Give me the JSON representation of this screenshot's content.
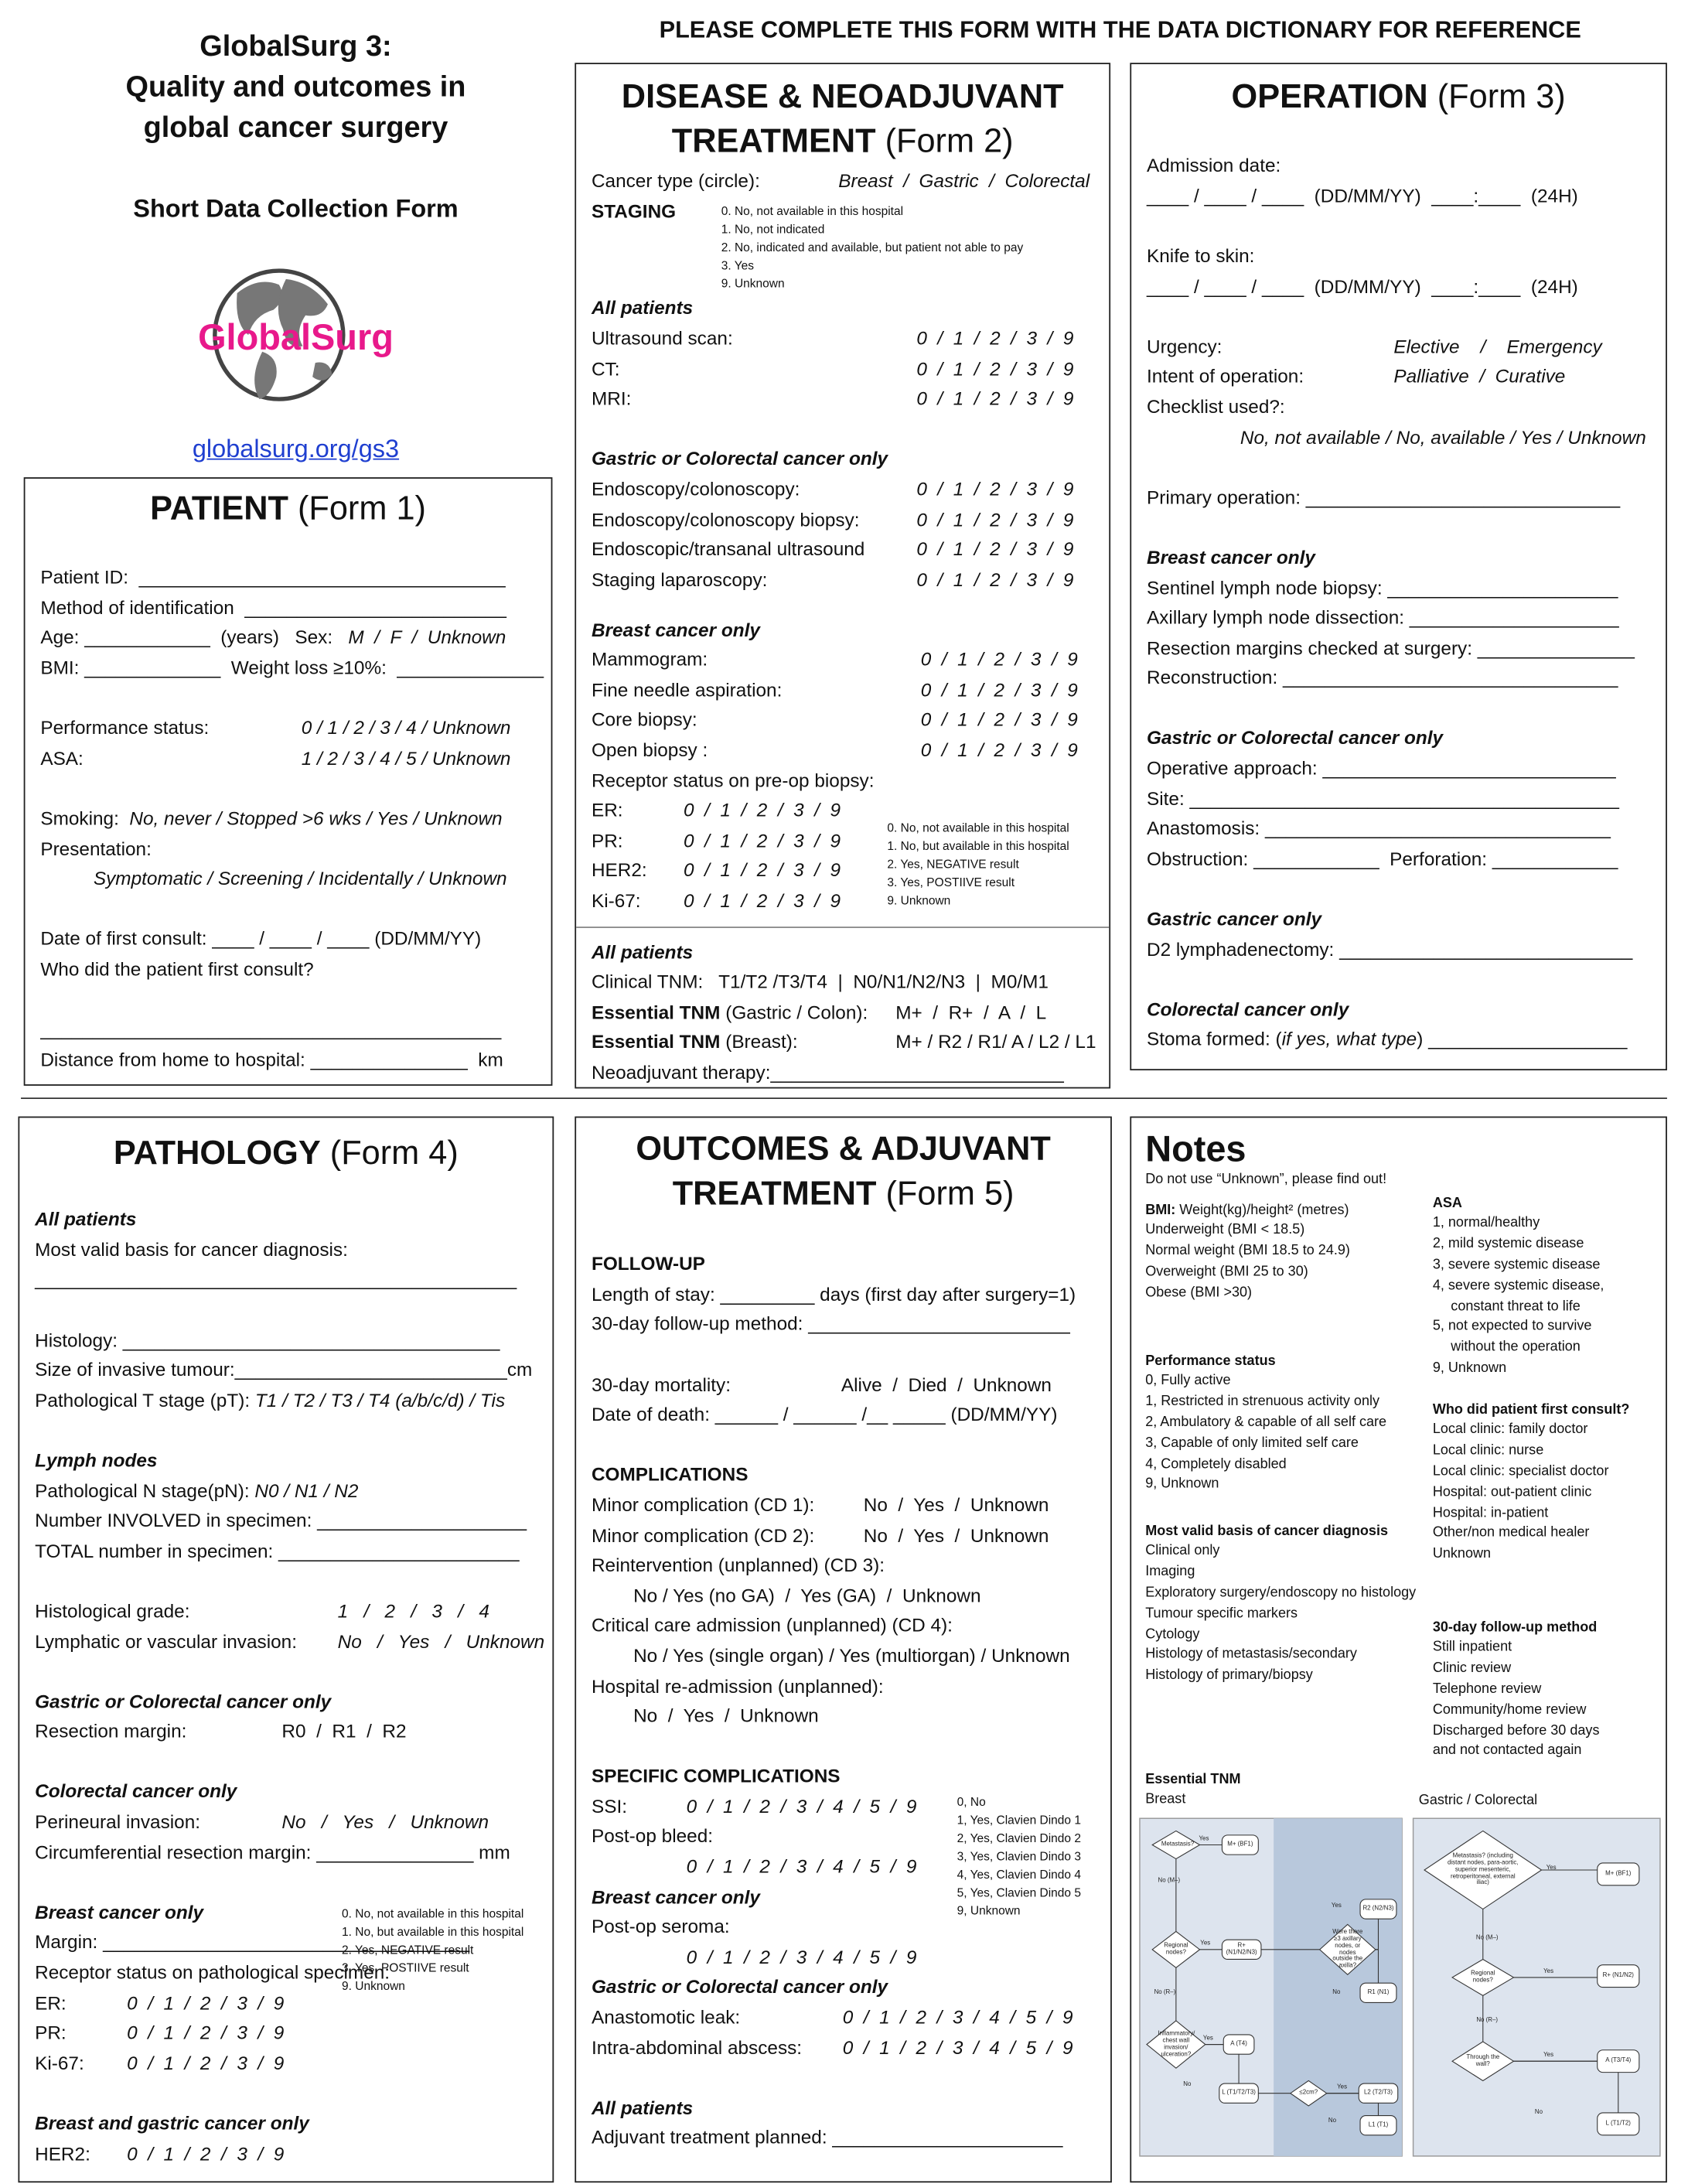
{
  "header": {
    "title": [
      "GlobalSurg 3:",
      "Quality and outcomes in",
      "global cancer surgery"
    ],
    "subtitle": "Short Data Collection Form",
    "logo_text": "GlobalSurg",
    "link": "globalsurg.org/gs3",
    "instruction": "PLEASE COMPLETE THIS FORM WITH THE DATA DICTIONARY FOR REFERENCE"
  },
  "forms": [
    {
      "title": "PATIENT",
      "form": "(Form 1)",
      "groups": [
        {
          "lines": [
            "Patient ID:  ___________________________________",
            "Method of identification  _________________________",
            [
              "Age: ____________  (years)   Sex:   ",
              "M  /  F  /  Unknown"
            ],
            "BMI: _____________  Weight loss ≥10%:  ______________"
          ]
        },
        {
          "lines": [
            {
              "label": "Performance status:",
              "options": "0 / 1 / 2 / 3 / 4 / Unknown"
            },
            {
              "label": "ASA:",
              "options": "1 / 2 / 3 / 4 / 5 / Unknown"
            }
          ]
        },
        {
          "lines": [
            [
              "Smoking:  ",
              "No, never / Stopped >6 wks / Yes / Unknown"
            ],
            "Presentation:",
            {
              "sub": "Symptomatic / Screening / Incidentally / Unknown"
            }
          ]
        },
        {
          "lines": [
            "Date of first consult: ____ / ____ / ____ (DD/MM/YY)",
            "Who did the patient first consult?"
          ]
        },
        {
          "lines": [
            "____________________________________________",
            "Distance from home to hospital: _______________  km"
          ]
        }
      ]
    },
    {
      "title": "DISEASE & NEOADJUVANT TREATMENT",
      "form": "(Form 2)",
      "groups": [
        {
          "lines": [
            {
              "label": "Cancer type (circle):",
              "options": "Breast  /  Gastric  /  Colorectal"
            }
          ]
        },
        {
          "section": "STAGING",
          "lines": [],
          "legend": [
            "0. No, not available in this hospital",
            "1. No, not indicated",
            "2. No, indicated and available, but patient not able to pay",
            "3. Yes",
            "9. Unknown"
          ]
        },
        {
          "heading": "All patients",
          "lines": [
            {
              "label": "Ultrasound scan:",
              "options": "0  /  1  /  2  /  3  /  9"
            },
            {
              "label": "CT:",
              "options": "0  /  1  /  2  /  3  /  9"
            },
            {
              "label": "MRI:",
              "options": "0  /  1  /  2  /  3  /  9"
            }
          ]
        },
        {
          "heading": "Gastric or Colorectal cancer only",
          "lines": [
            {
              "label": "Endoscopy/colonoscopy:",
              "options": "0  /  1  /  2  /  3  /  9"
            },
            {
              "label": "Endoscopy/colonoscopy biopsy:",
              "options": "0  /  1  /  2  /  3  /  9"
            },
            {
              "label": "Endoscopic/transanal ultrasound",
              "options": "0  /  1  /  2  /  3  /  9"
            },
            {
              "label": "Staging laparoscopy:",
              "options": "0  /  1  /  2  /  3  /  9"
            }
          ]
        },
        {
          "heading": "Breast cancer only",
          "lines": [
            {
              "label": "Mammogram:",
              "options": "0  /  1  /  2  /  3  /  9"
            },
            {
              "label": "Fine needle aspiration:",
              "options": "0  /  1  /  2  /  3  /  9"
            },
            {
              "label": "Core biopsy:",
              "options": "0  /  1  /  2  /  3  /  9"
            },
            {
              "label": "Open biopsy :",
              "options": "0  /  1  /  2  /  3  /  9"
            },
            "Receptor status on pre-op biopsy:"
          ]
        },
        {
          "lines": [
            {
              "label": "ER:",
              "options": "0  /  1  /  2  /  3  /  9"
            },
            {
              "label": "PR:",
              "options": "0  /  1  /  2  /  3  /  9"
            },
            {
              "label": "HER2:",
              "options": "0  /  1  /  2  /  3  /  9"
            },
            {
              "label": "Ki-67:",
              "options": "0  /  1  /  2  /  3  /  9"
            }
          ],
          "legend": [
            "0. No, not available in this hospital",
            "1. No, but available in this hospital",
            "2. Yes, NEGATIVE result",
            "3. Yes, POSTIIVE result",
            "9. Unknown"
          ]
        },
        {
          "heading": "All patients",
          "lines": [
            "Clinical TNM:   T1/T2 /T3/T4  |  N0/N1/N2/N3  |  M0/M1",
            {
              "bold": "Essential TNM",
              "label": " (Gastric / Colon):",
              "options": "M+  /  R+  /  A  /  L"
            },
            {
              "bold": "Essential TNM",
              "label": " (Breast):",
              "options": "M+ / R2 / R1/ A / L2 / L1"
            },
            "Neoadjuvant therapy:____________________________"
          ]
        }
      ]
    },
    {
      "title": "OPERATION",
      "form": "(Form 3)",
      "groups": [
        {
          "lines": [
            "Admission date:",
            "____ / ____ / ____  (DD/MM/YY)  ____:____  (24H)"
          ]
        },
        {
          "lines": [
            "Knife to skin:",
            "____ / ____ / ____  (DD/MM/YY)  ____:____  (24H)"
          ]
        },
        {
          "lines": [
            {
              "label": "Urgency:",
              "options": "Elective    /    Emergency"
            },
            {
              "label": "Intent of operation:",
              "options": "Palliative  /  Curative"
            },
            "Checklist used?:",
            {
              "sub": "No, not available / No, available / Yes / Unknown"
            }
          ]
        },
        {
          "lines": [
            "Primary operation: ______________________________"
          ]
        },
        {
          "heading": "Breast cancer only",
          "lines": [
            "Sentinel lymph node biopsy: ______________________",
            "Axillary lymph node dissection: ____________________",
            "Resection margins checked at surgery: _______________",
            "Reconstruction: ________________________________"
          ]
        },
        {
          "heading": "Gastric or Colorectal cancer only",
          "lines": [
            "Operative approach: ____________________________",
            "Site: _________________________________________",
            "Anastomosis: _________________________________",
            "Obstruction: ____________  Perforation: ____________"
          ]
        },
        {
          "heading": "Gastric cancer only",
          "lines": [
            "D2 lymphadenectomy: ____________________________"
          ]
        },
        {
          "heading": "Colorectal cancer only",
          "lines": [
            [
              "Stoma formed: (",
              "if yes, what type",
              ") ___________________"
            ]
          ]
        }
      ]
    },
    {
      "title": "PATHOLOGY",
      "form": "(Form 4)",
      "groups": [
        {
          "heading": "All patients",
          "lines": [
            "Most valid basis for cancer diagnosis:",
            "______________________________________________"
          ]
        },
        {
          "lines": [
            "Histology: ____________________________________",
            "Size of invasive tumour:__________________________cm",
            [
              "Pathological T stage (pT): ",
              "T1 / T2 / T3 / T4 (a/b/c/d) / Tis"
            ]
          ]
        },
        {
          "heading": "Lymph nodes",
          "lines": [
            [
              "Pathological N stage(pN): ",
              "N0 / N1 / N2"
            ],
            "Number INVOLVED in specimen: ____________________",
            "TOTAL number in specimen: _______________________"
          ]
        },
        {
          "lines": [
            {
              "label": "Histological grade:",
              "options": "1   /   2   /   3   /   4"
            },
            {
              "label": "Lymphatic or vascular invasion:",
              "options": "No   /   Yes   /   Unknown"
            }
          ]
        },
        {
          "heading": "Gastric or Colorectal cancer only",
          "lines": [
            {
              "label": "Resection margin:",
              "options": "R0  /  R1  /  R2"
            }
          ]
        },
        {
          "heading": "Colorectal cancer only",
          "lines": [
            {
              "label": "Perineural invasion:",
              "options": "No   /   Yes   /   Unknown"
            },
            "Circumferential resection margin: _______________ mm"
          ]
        },
        {
          "heading": "Breast cancer only",
          "lines": [
            "Margin: ___________________________________",
            "Receptor status on pathological specimen:",
            {
              "label": "ER:",
              "options": "0  /  1  /  2  /  3  /  9"
            },
            {
              "label": "PR:",
              "options": "0  /  1  /  2  /  3  /  9"
            },
            {
              "label": "Ki-67:",
              "options": "0  /  1  /  2  /  3  /  9"
            }
          ],
          "legend": [
            "0. No, not available in this hospital",
            "1. No, but available in this hospital",
            "2. Yes, NEGATIVE result",
            "3. Yes, POSTIIVE result",
            "9. Unknown"
          ]
        },
        {
          "heading": "Breast and gastric cancer only",
          "lines": [
            {
              "label": "HER2:",
              "options": "0  /  1  /  2  /  3  /  9"
            }
          ]
        }
      ]
    },
    {
      "title": "OUTCOMES & ADJUVANT TREATMENT",
      "form": "(Form 5)",
      "groups": [
        {
          "section": "FOLLOW-UP",
          "lines": [
            "Length of stay: _________ days (first day after surgery=1)",
            "30-day follow-up method: _________________________"
          ]
        },
        {
          "lines": [
            {
              "label": "30-day mortality:",
              "options": "Alive  /  Died  /  Unknown"
            },
            "Date of death: ______ / ______ /__ _____ (DD/MM/YY)"
          ]
        },
        {
          "section": "COMPLICATIONS",
          "lines": [
            {
              "label": "Minor complication (CD 1):",
              "options": "No  /  Yes  /  Unknown"
            },
            {
              "label": "Minor complication (CD 2):",
              "options": "No  /  Yes  /  Unknown"
            },
            "Reintervention (unplanned) (CD 3):",
            {
              "sub": "No / Yes (no GA)  /  Yes (GA)  /  Unknown"
            },
            "Critical care admission (unplanned) (CD 4):",
            {
              "sub": "No / Yes (single organ) / Yes (multiorgan) / Unknown"
            },
            "Hospital re-admission (unplanned):",
            {
              "sub": "No  /  Yes  /  Unknown"
            }
          ]
        },
        {
          "section": "SPECIFIC COMPLICATIONS",
          "lines": [
            {
              "label": "SSI:",
              "options": "0  /  1  /  2  /  3  /  4  /  5  /  9"
            },
            "Post-op bleed:",
            {
              "sub": "0  /  1  /  2  /  3  /  4  /  5  /  9"
            },
            {
              "heading": "Breast cancer only"
            },
            "Post-op seroma:",
            {
              "sub": "0  /  1  /  2  /  3  /  4  /  5  /  9"
            }
          ],
          "legend": [
            "0, No",
            "1, Yes, Clavien Dindo 1",
            "2, Yes, Clavien Dindo 2",
            "3, Yes, Clavien Dindo 3",
            "4, Yes, Clavien Dindo 4",
            "5, Yes, Clavien Dindo 5",
            "9, Unknown"
          ]
        },
        {
          "heading": "Gastric or Colorectal cancer only",
          "lines": [
            {
              "label": "Anastomotic leak:",
              "options": "0  /  1  /  2  /  3  /  4  /  5  /  9"
            },
            {
              "label": "Intra-abdominal abscess:",
              "options": "0  /  1  /  2  /  3  /  4  /  5  /  9"
            }
          ]
        },
        {
          "heading": "All patients",
          "lines": [
            "Adjuvant treatment planned: ______________________"
          ]
        }
      ]
    }
  ],
  "notes": {
    "title": "Notes",
    "warning": "Do not use “Unknown”, please find out!",
    "blocks": [
      {
        "items": [
          {
            "bold": "BMI:",
            "text": " Weight(kg)/height² (metres)"
          },
          "Underweight (BMI < 18.5)",
          "Normal weight (BMI 18.5 to 24.9)",
          "Overweight (BMI 25 to 30)",
          "Obese (BMI >30)"
        ]
      },
      {
        "heading": "Performance status",
        "items": [
          "0, Fully active",
          "1, Restricted in strenuous activity only",
          "2, Ambulatory & capable of all self care",
          "3, Capable of only limited self care",
          "4, Completely disabled",
          "9, Unknown"
        ]
      },
      {
        "heading": "Most valid basis of cancer diagnosis",
        "items": [
          "Clinical only",
          "Imaging",
          "Exploratory surgery/endoscopy no histology",
          "Tumour specific markers",
          "Cytology",
          "Histology of metastasis/secondary",
          "Histology of primary/biopsy"
        ]
      },
      {
        "heading": "ASA",
        "items": [
          "1, normal/healthy",
          "2, mild systemic disease",
          "3, severe systemic disease",
          "4, severe systemic disease,",
          {
            "sub": "constant threat to life"
          },
          "5, not expected to survive",
          {
            "sub": "without the operation"
          },
          "9, Unknown"
        ]
      },
      {
        "heading": "Who did patient first consult?",
        "items": [
          "Local clinic: family doctor",
          "Local clinic: nurse",
          "Local clinic: specialist doctor",
          "Hospital: out-patient clinic",
          "Hospital: in-patient",
          "Other/non medical healer",
          "Unknown"
        ]
      },
      {
        "heading": "30-day follow-up method",
        "items": [
          "Still inpatient",
          "Clinic review",
          "Telephone review",
          "Community/home review",
          "Discharged before 30 days",
          "and not contacted again"
        ]
      }
    ],
    "tnm": {
      "heading": "Essential TNM",
      "breast": "Breast",
      "gastric": "Gastric / Colorectal",
      "breast_flow": [
        "Metastasis?",
        "Yes",
        "M+ (BF1)",
        "No (M–)",
        "Regional nodes?",
        "Yes",
        "R+ (N1/N2/N3)",
        "Were there ≥3 axillary nodes, or nodes outside the axilla?",
        "Yes",
        "R2 (N2/N3)",
        "No",
        "R1 (N1)",
        "No (R–)",
        "Inflammatory/ chest wall invasion/ ulceration?",
        "Yes",
        "A (T4)",
        "No",
        "L (T1/T2/T3)",
        "≤2cm?",
        "Yes",
        "L2 (T2/T3)",
        "No",
        "L1 (T1)"
      ],
      "gastric_flow": [
        "Metastasis? (including distant nodes, para-aortic, superior mesenteric, retroperitoneal, external iliac)",
        "Yes",
        "M+ (BF1)",
        "No (M–)",
        "Regional nodes?",
        "Yes",
        "R+ (N1/N2)",
        "No (R–)",
        "Through the wall?",
        "Yes",
        "A (T3/T4)",
        "No",
        "L (T1/T2)"
      ]
    }
  }
}
